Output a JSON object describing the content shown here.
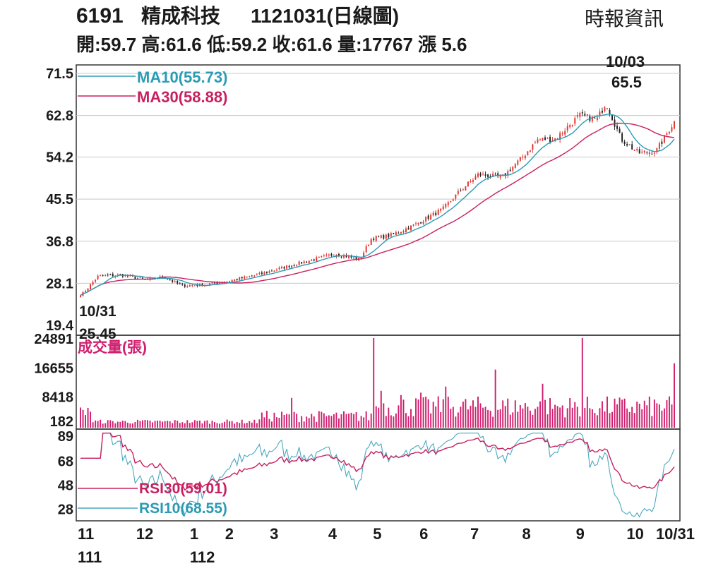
{
  "header": {
    "title_code": "6191",
    "title_name": "精成科技",
    "title_date": "1121031(日線圖)",
    "source": "時報資訊",
    "quote_line": "開:59.7 高:61.6 低:59.2 收:61.6 量:17767 漲 5.6"
  },
  "colors": {
    "up_candle": "#e2342e",
    "down_candle": "#222222",
    "ma10": "#2a9bb4",
    "ma30": "#c8205f",
    "volume": "#d01f6f",
    "rsi30": "#c8205f",
    "rsi10": "#4aa8c0",
    "grid": "#c8c8c8",
    "frame": "#333333"
  },
  "chart_data": {
    "type": "line",
    "subtype": "candlestick-with-ma-volume-rsi",
    "price_panel": {
      "y_ticks": [
        "71.5",
        "62.8",
        "54.2",
        "45.5",
        "36.8",
        "28.1",
        "19.4"
      ],
      "ylim": [
        19.4,
        71.5
      ],
      "legend": [
        {
          "name": "MA10(55.73)",
          "series": "ma10"
        },
        {
          "name": "MA30(58.88)",
          "series": "ma30"
        }
      ],
      "annotations": [
        {
          "date_label": "10/31",
          "value_label": "25.45",
          "position": "bottom-left"
        },
        {
          "date_label": "10/03",
          "value_label": "65.5",
          "position": "top-right"
        }
      ],
      "price_anchors": [
        {
          "t": 0.0,
          "v": 25.45
        },
        {
          "t": 0.03,
          "v": 29.6
        },
        {
          "t": 0.07,
          "v": 29.8
        },
        {
          "t": 0.11,
          "v": 28.8
        },
        {
          "t": 0.14,
          "v": 29.4
        },
        {
          "t": 0.17,
          "v": 27.6
        },
        {
          "t": 0.21,
          "v": 27.8
        },
        {
          "t": 0.25,
          "v": 28.6
        },
        {
          "t": 0.3,
          "v": 29.9
        },
        {
          "t": 0.36,
          "v": 32.0
        },
        {
          "t": 0.43,
          "v": 34.2
        },
        {
          "t": 0.47,
          "v": 33.0
        },
        {
          "t": 0.49,
          "v": 37.4
        },
        {
          "t": 0.52,
          "v": 37.9
        },
        {
          "t": 0.56,
          "v": 40.0
        },
        {
          "t": 0.61,
          "v": 43.4
        },
        {
          "t": 0.64,
          "v": 47.3
        },
        {
          "t": 0.67,
          "v": 50.6
        },
        {
          "t": 0.71,
          "v": 50.0
        },
        {
          "t": 0.74,
          "v": 53.6
        },
        {
          "t": 0.77,
          "v": 57.8
        },
        {
          "t": 0.8,
          "v": 58.0
        },
        {
          "t": 0.84,
          "v": 62.8
        },
        {
          "t": 0.87,
          "v": 62.0
        },
        {
          "t": 0.885,
          "v": 65.5
        },
        {
          "t": 0.91,
          "v": 58.0
        },
        {
          "t": 0.94,
          "v": 55.0
        },
        {
          "t": 0.97,
          "v": 55.5
        },
        {
          "t": 1.0,
          "v": 61.6
        }
      ]
    },
    "volume_panel": {
      "title": "成交量(張)",
      "y_ticks": [
        "24891",
        "16655",
        "8418",
        "182"
      ],
      "ylim": [
        182,
        24891
      ],
      "spikes": [
        {
          "t": 0.495,
          "v": 24900
        },
        {
          "t": 0.845,
          "v": 24891
        },
        {
          "t": 0.7,
          "v": 16000
        },
        {
          "t": 0.78,
          "v": 12000
        },
        {
          "t": 1.0,
          "v": 17767
        },
        {
          "t": 0.355,
          "v": 8000
        },
        {
          "t": 0.575,
          "v": 9500
        },
        {
          "t": 0.615,
          "v": 11200
        },
        {
          "t": 0.505,
          "v": 10000
        },
        {
          "t": 0.54,
          "v": 8800
        }
      ]
    },
    "rsi_panel": {
      "y_ticks": [
        "89",
        "68",
        "48",
        "28"
      ],
      "ylim": [
        20,
        92
      ],
      "legend": [
        {
          "name": "RSI30(59.01)",
          "series": "rsi30"
        },
        {
          "name": "RSI10(68.55)",
          "series": "rsi10"
        }
      ]
    },
    "x_axis": {
      "month_labels": [
        "11",
        "12",
        "1",
        "2",
        "3",
        "4",
        "5",
        "6",
        "7",
        "8",
        "9",
        "10",
        "10/31"
      ],
      "month_positions": [
        0.0,
        0.098,
        0.188,
        0.247,
        0.322,
        0.42,
        0.495,
        0.573,
        0.658,
        0.745,
        0.835,
        0.92,
        1.0
      ],
      "year_labels": [
        {
          "text": "111",
          "at": 0.0
        },
        {
          "text": "112",
          "at": 0.188
        }
      ]
    }
  }
}
